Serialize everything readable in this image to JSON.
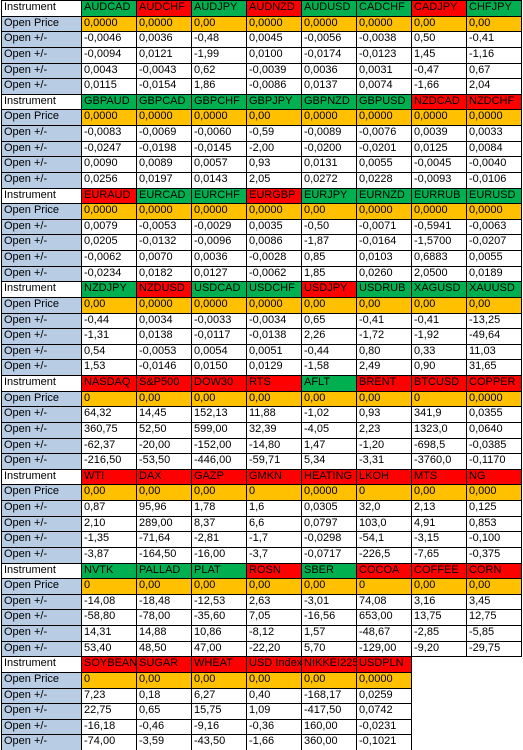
{
  "labels": {
    "instrument": "Instrument",
    "open_price": "Open Price",
    "open_change": "Open +/-"
  },
  "blocks": [
    {
      "instruments": [
        {
          "name": "AUDCAD",
          "color": "#00b050"
        },
        {
          "name": "AUDCHF",
          "color": "#ff0000"
        },
        {
          "name": "AUDJPY",
          "color": "#00b050"
        },
        {
          "name": "AUDNZD",
          "color": "#ff0000"
        },
        {
          "name": "AUDUSD",
          "color": "#00b050"
        },
        {
          "name": "CADCHF",
          "color": "#00b050"
        },
        {
          "name": "CADJPY",
          "color": "#ff0000"
        },
        {
          "name": "CHFJPY",
          "color": "#00b050"
        }
      ],
      "open_price": [
        "0,0000",
        "0,0000",
        "0,00",
        "0,0000",
        "0,0000",
        "0,0000",
        "0,00",
        "0,00"
      ],
      "rows": [
        [
          "-0,0046",
          "0,0036",
          "-0,48",
          "0,0045",
          "-0,0056",
          "-0,0038",
          "0,50",
          "-0,41"
        ],
        [
          "-0,0094",
          "0,0121",
          "-1,99",
          "0,0100",
          "-0,0174",
          "-0,0123",
          "1,45",
          "-1,16"
        ],
        [
          "0,0043",
          "-0,0043",
          "0,62",
          "-0,0039",
          "0,0036",
          "0,0031",
          "-0,47",
          "0,67"
        ],
        [
          "0,0115",
          "-0,0154",
          "1,86",
          "-0,0086",
          "0,0137",
          "0,0074",
          "-1,66",
          "2,04"
        ]
      ]
    },
    {
      "instruments": [
        {
          "name": "GBPAUD",
          "color": "#00b050"
        },
        {
          "name": "GBPCAD",
          "color": "#00b050"
        },
        {
          "name": "GBPCHF",
          "color": "#00b050"
        },
        {
          "name": "GBPJPY",
          "color": "#00b050"
        },
        {
          "name": "GBPNZD",
          "color": "#00b050"
        },
        {
          "name": "GBPUSD",
          "color": "#00b050"
        },
        {
          "name": "NZDCAD",
          "color": "#ff0000"
        },
        {
          "name": "NZDCHF",
          "color": "#ff0000"
        }
      ],
      "open_price": [
        "0,0000",
        "0,0000",
        "0,0000",
        "0,00",
        "0,0000",
        "0,0000",
        "0,0000",
        "0,0000"
      ],
      "rows": [
        [
          "-0,0083",
          "-0,0069",
          "-0,0060",
          "-0,59",
          "-0,0089",
          "-0,0076",
          "0,0039",
          "0,0033"
        ],
        [
          "-0,0247",
          "-0,0198",
          "-0,0145",
          "-2,00",
          "-0,0200",
          "-0,0201",
          "0,0125",
          "0,0084"
        ],
        [
          "0,0090",
          "0,0089",
          "0,0057",
          "0,93",
          "0,0131",
          "0,0055",
          "-0,0045",
          "-0,0040"
        ],
        [
          "0,0256",
          "0,0197",
          "0,0143",
          "2,05",
          "0,0272",
          "0,0228",
          "-0,0093",
          "-0,0106"
        ]
      ]
    },
    {
      "instruments": [
        {
          "name": "EURAUD",
          "color": "#ff0000"
        },
        {
          "name": "EURCAD",
          "color": "#00b050"
        },
        {
          "name": "EURCHF",
          "color": "#00b050"
        },
        {
          "name": "EURGBP",
          "color": "#ff0000"
        },
        {
          "name": "EURJPY",
          "color": "#00b050"
        },
        {
          "name": "EURNZD",
          "color": "#00b050"
        },
        {
          "name": "EURRUB",
          "color": "#00b050"
        },
        {
          "name": "EURUSD",
          "color": "#00b050"
        }
      ],
      "open_price": [
        "0,0000",
        "0,0000",
        "0,0000",
        "0,0000",
        "0,00",
        "0,0000",
        "0,0000",
        "0,0000"
      ],
      "rows": [
        [
          "0,0079",
          "-0,0053",
          "-0,0029",
          "0,0035",
          "-0,50",
          "-0,0071",
          "-0,5941",
          "-0,0063"
        ],
        [
          "0,0205",
          "-0,0132",
          "-0,0096",
          "0,0086",
          "-1,87",
          "-0,0164",
          "-1,5700",
          "-0,0207"
        ],
        [
          "-0,0062",
          "0,0070",
          "0,0036",
          "-0,0028",
          "0,85",
          "0,0103",
          "0,6883",
          "0,0055"
        ],
        [
          "-0,0234",
          "0,0182",
          "0,0127",
          "-0,0062",
          "1,85",
          "0,0260",
          "2,0500",
          "0,0189"
        ]
      ]
    },
    {
      "instruments": [
        {
          "name": "NZDJPY",
          "color": "#00b050"
        },
        {
          "name": "NZDUSD",
          "color": "#ff0000"
        },
        {
          "name": "USDCAD",
          "color": "#00b050"
        },
        {
          "name": "USDCHF",
          "color": "#00b050"
        },
        {
          "name": "USDJPY",
          "color": "#ff0000"
        },
        {
          "name": "USDRUB",
          "color": "#00b050"
        },
        {
          "name": "XAGUSD",
          "color": "#00b050"
        },
        {
          "name": "XAUUSD",
          "color": "#00b050"
        }
      ],
      "open_price": [
        "0,00",
        "0,0000",
        "0,0000",
        "0,0000",
        "0,00",
        "0,00",
        "0,00",
        "0,00"
      ],
      "rows": [
        [
          "-0,44",
          "0,0034",
          "-0,0033",
          "-0,0034",
          "0,65",
          "-0,41",
          "-0,41",
          "-13,25"
        ],
        [
          "-1,31",
          "0,0138",
          "-0,0117",
          "-0,0138",
          "2,26",
          "-1,72",
          "-1,92",
          "-49,64"
        ],
        [
          "0,54",
          "-0,0053",
          "0,0054",
          "0,0051",
          "-0,44",
          "0,80",
          "0,33",
          "11,03"
        ],
        [
          "1,53",
          "-0,0146",
          "0,0150",
          "0,0129",
          "-1,58",
          "2,49",
          "0,90",
          "31,65"
        ]
      ]
    },
    {
      "instruments": [
        {
          "name": "NASDAQ",
          "color": "#ff0000"
        },
        {
          "name": "S&P500",
          "color": "#ff0000"
        },
        {
          "name": "DOW30",
          "color": "#ff0000"
        },
        {
          "name": "RTS",
          "color": "#ff0000"
        },
        {
          "name": "AFLT",
          "color": "#00b050"
        },
        {
          "name": "BRENT",
          "color": "#ff0000"
        },
        {
          "name": "BTCUSD",
          "color": "#ff0000"
        },
        {
          "name": "COPPER",
          "color": "#ff0000"
        }
      ],
      "open_price": [
        "0",
        "0,00",
        "0,00",
        "0,00",
        "0,00",
        "0,00",
        "0",
        "0,0000"
      ],
      "rows": [
        [
          "64,32",
          "14,45",
          "152,13",
          "11,88",
          "-1,02",
          "0,93",
          "341,9",
          "0,0355"
        ],
        [
          "360,75",
          "52,50",
          "599,00",
          "32,39",
          "-4,05",
          "2,23",
          "1323,0",
          "0,0640"
        ],
        [
          "-62,37",
          "-20,00",
          "-152,00",
          "-14,80",
          "1,47",
          "-1,20",
          "-698,5",
          "-0,0385"
        ],
        [
          "-216,50",
          "-53,50",
          "-446,00",
          "-59,71",
          "5,34",
          "-3,31",
          "-3760,0",
          "-0,1170"
        ]
      ]
    },
    {
      "instruments": [
        {
          "name": "WTI",
          "color": "#ff0000"
        },
        {
          "name": "DAX",
          "color": "#ff0000"
        },
        {
          "name": "GAZP",
          "color": "#ff0000"
        },
        {
          "name": "GMKN",
          "color": "#ff0000"
        },
        {
          "name": "HEATING",
          "color": "#ff0000"
        },
        {
          "name": "LKOH",
          "color": "#ff0000"
        },
        {
          "name": "MTS",
          "color": "#ff0000"
        },
        {
          "name": "NG",
          "color": "#ff0000"
        }
      ],
      "open_price": [
        "0,00",
        "0,00",
        "0,00",
        "0",
        "0,0000",
        "0",
        "0,00",
        "0,000"
      ],
      "rows": [
        [
          "0,87",
          "95,96",
          "1,78",
          "1,6",
          "0,0305",
          "32,0",
          "2,13",
          "0,125"
        ],
        [
          "2,10",
          "289,00",
          "8,37",
          "6,6",
          "0,0797",
          "103,0",
          "4,91",
          "0,853"
        ],
        [
          "-1,35",
          "-71,64",
          "-2,81",
          "-1,7",
          "-0,0298",
          "-54,1",
          "-3,15",
          "-0,100"
        ],
        [
          "-3,87",
          "-164,50",
          "-16,00",
          "-3,7",
          "-0,0717",
          "-226,5",
          "-7,65",
          "-0,375"
        ]
      ]
    },
    {
      "instruments": [
        {
          "name": "NVTK",
          "color": "#00b050"
        },
        {
          "name": "PALLAD",
          "color": "#00b050"
        },
        {
          "name": "PLAT",
          "color": "#00b050"
        },
        {
          "name": "ROSN",
          "color": "#ff0000"
        },
        {
          "name": "SBER",
          "color": "#00b050"
        },
        {
          "name": "COCOA",
          "color": "#ff0000"
        },
        {
          "name": "COFFEE",
          "color": "#ff0000"
        },
        {
          "name": "CORN",
          "color": "#ff0000"
        }
      ],
      "open_price": [
        "0",
        "0,00",
        "0,00",
        "0,00",
        "0,00",
        "0",
        "0,00",
        "0,00"
      ],
      "rows": [
        [
          "-14,08",
          "-18,48",
          "-12,53",
          "2,63",
          "-3,01",
          "74,08",
          "3,16",
          "3,45"
        ],
        [
          "-58,80",
          "-78,00",
          "-35,60",
          "7,05",
          "-16,56",
          "653,00",
          "13,75",
          "12,75"
        ],
        [
          "14,31",
          "14,88",
          "10,86",
          "-8,12",
          "1,57",
          "-48,67",
          "-2,85",
          "-5,85"
        ],
        [
          "53,40",
          "48,50",
          "47,00",
          "-22,20",
          "5,70",
          "-129,00",
          "-9,20",
          "-29,75"
        ]
      ]
    },
    {
      "instruments": [
        {
          "name": "SOYBEAN",
          "color": "#ff0000"
        },
        {
          "name": "SUGAR",
          "color": "#ff0000"
        },
        {
          "name": "WHEAT",
          "color": "#ff0000"
        },
        {
          "name": "USD Index",
          "color": "#ff0000"
        },
        {
          "name": "NIKKEI225",
          "color": "#ff0000"
        },
        {
          "name": "USDPLN",
          "color": "#ff0000"
        }
      ],
      "open_price": [
        "0",
        "0,00",
        "0,00",
        "0,00",
        "0,00",
        "0,0000"
      ],
      "rows": [
        [
          "7,23",
          "0,18",
          "6,27",
          "0,40",
          "-168,17",
          "0,0259"
        ],
        [
          "22,75",
          "0,65",
          "15,75",
          "1,09",
          "-417,50",
          "0,0742"
        ],
        [
          "-16,18",
          "-0,46",
          "-9,16",
          "-0,36",
          "160,00",
          "-0,0231"
        ],
        [
          "-74,00",
          "-3,59",
          "-43,50",
          "-1,66",
          "360,00",
          "-0,1021"
        ]
      ]
    }
  ]
}
